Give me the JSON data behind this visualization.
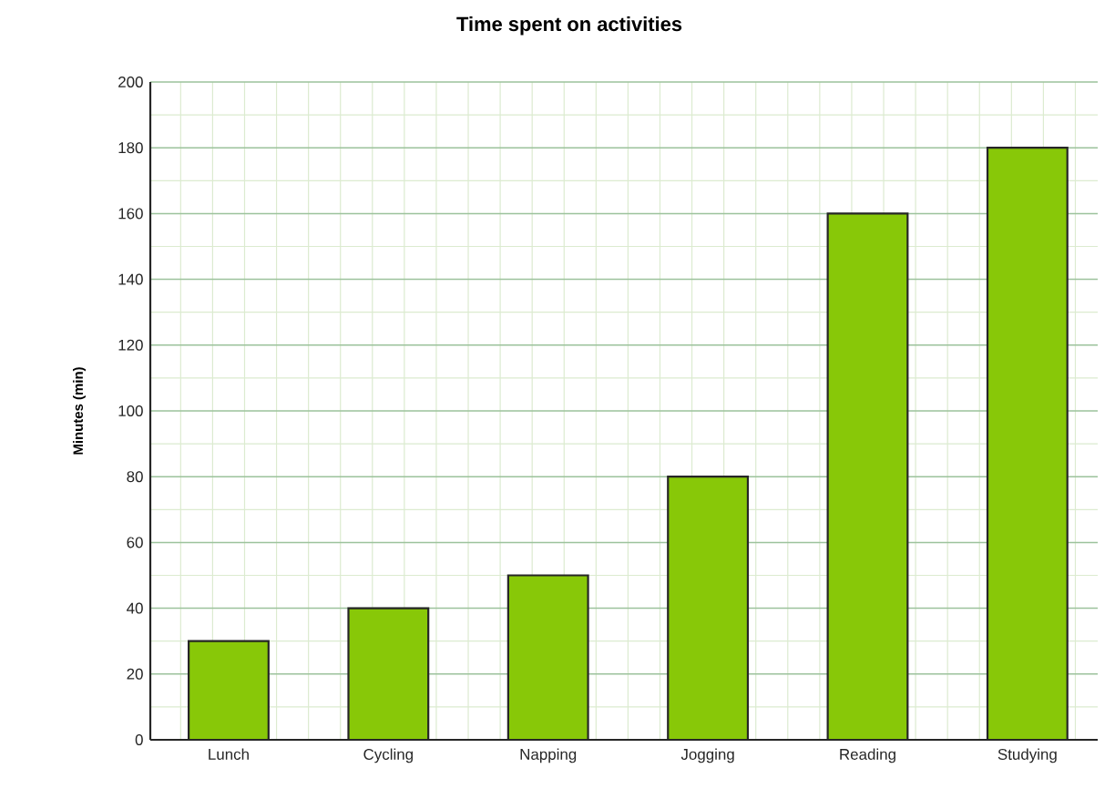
{
  "chart_data": {
    "type": "bar",
    "title": "Time spent on activities",
    "ylabel": "Minutes (min)",
    "categories": [
      "Lunch",
      "Cycling",
      "Napping",
      "Jogging",
      "Reading",
      "Studying"
    ],
    "values": [
      30,
      40,
      50,
      80,
      160,
      180
    ],
    "color": "#88c808",
    "ylim": [
      0,
      200
    ],
    "yticks": [
      0,
      20,
      40,
      60,
      80,
      100,
      120,
      140,
      160,
      180,
      200
    ],
    "grid": true
  }
}
